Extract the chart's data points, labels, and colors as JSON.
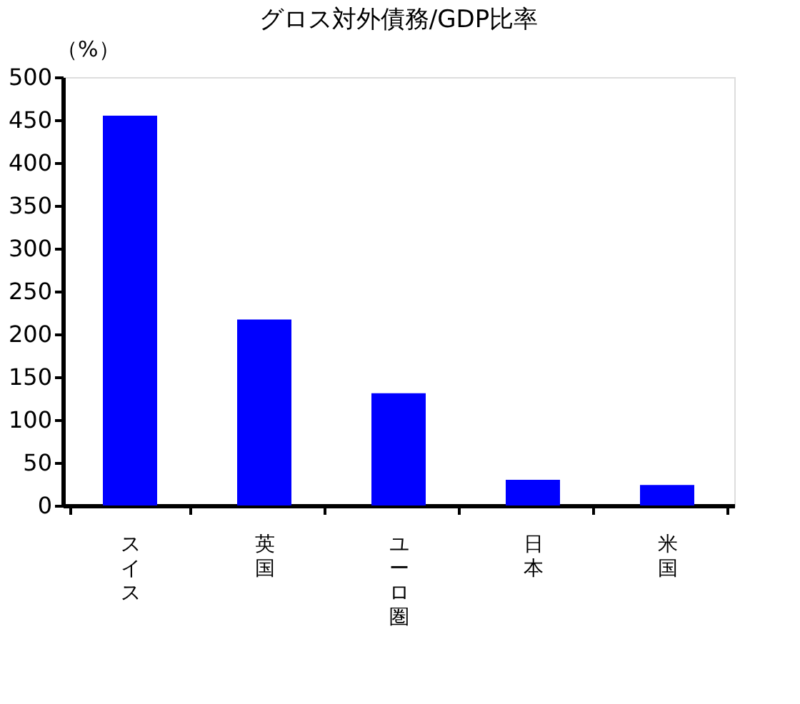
{
  "chart_data": {
    "type": "bar",
    "title": "グロス対外債務/GDP比率",
    "ylabel": "（%）",
    "categories": [
      "スイス",
      "英国",
      "ユーロ圏",
      "日本",
      "米国"
    ],
    "values": [
      455,
      217,
      131,
      30,
      24
    ],
    "color": "#0000ff",
    "ylim": [
      0,
      500
    ],
    "yticks": [
      0,
      50,
      100,
      150,
      200,
      250,
      300,
      350,
      400,
      450,
      500
    ],
    "grid": false
  }
}
